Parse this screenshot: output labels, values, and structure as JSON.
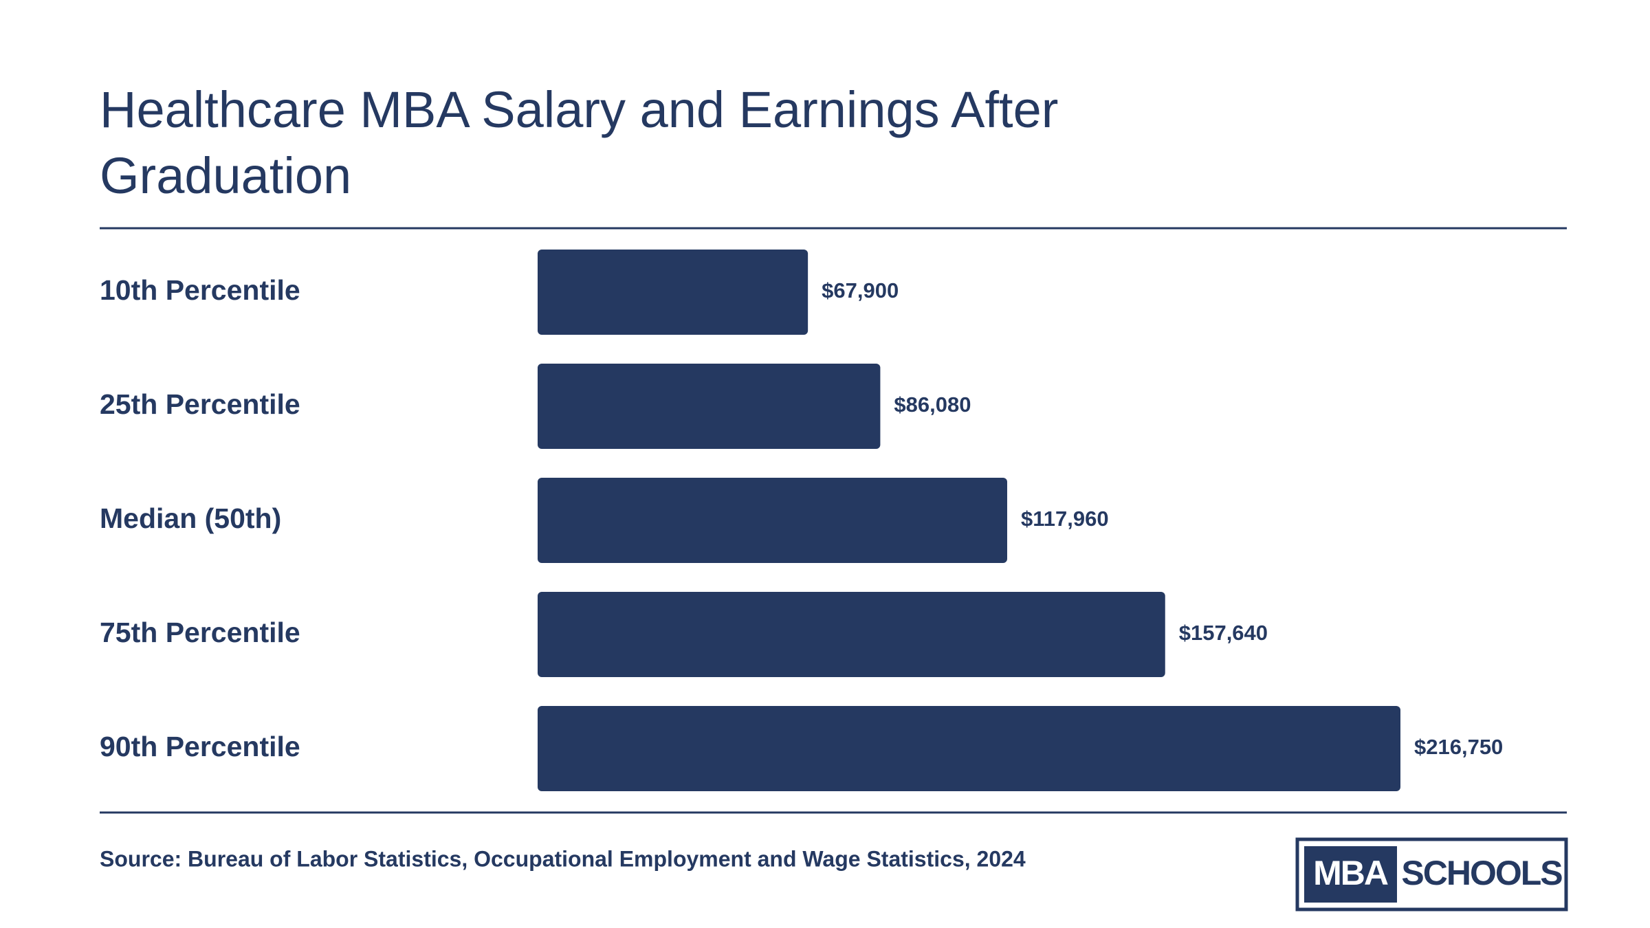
{
  "chart_data": {
    "type": "bar",
    "orientation": "horizontal",
    "title": "Healthcare MBA Salary and Earnings After Graduation",
    "categories": [
      "10th Percentile",
      "25th Percentile",
      "Median (50th)",
      "75th Percentile",
      "90th Percentile"
    ],
    "values": [
      67900,
      86080,
      117960,
      157640,
      216750
    ],
    "value_labels": [
      "$67,900",
      "$86,080",
      "$117,960",
      "$157,640",
      "$216,750"
    ],
    "color": "#253961",
    "source": "Source: Bureau of Labor Statistics, Occupational Employment and Wage Statistics, 2024"
  },
  "logo": {
    "left": "MBA",
    "right": "SCHOOLS"
  }
}
